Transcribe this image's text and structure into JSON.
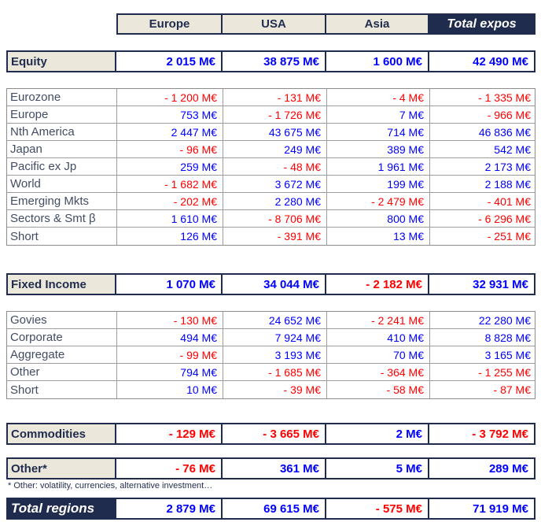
{
  "colors": {
    "navy": "#1f2c4d",
    "beige": "#ebe7db",
    "positive_value": "#0000ff",
    "negative_value": "#ff0000",
    "grid": "#9d9d9d",
    "detail_label": "#414d63"
  },
  "currency_unit": "M€",
  "header": {
    "columns": [
      {
        "label": "Europe",
        "emphasis": false
      },
      {
        "label": "USA",
        "emphasis": false
      },
      {
        "label": "Asia",
        "emphasis": false
      },
      {
        "label": "Total expos",
        "emphasis": true
      }
    ]
  },
  "sections": [
    {
      "kind": "section",
      "label": "Equity",
      "values": [
        "2 015 M€",
        "38 875 M€",
        "1 600 M€",
        "42 490 M€"
      ]
    },
    {
      "kind": "detail",
      "rows": [
        {
          "label": "Eurozone",
          "values": [
            "- 1 200 M€",
            "- 131 M€",
            "- 4 M€",
            "- 1 335 M€"
          ]
        },
        {
          "label": "Europe",
          "values": [
            "753 M€",
            "- 1 726 M€",
            "7 M€",
            "- 966 M€"
          ]
        },
        {
          "label": "Nth America",
          "values": [
            "2 447 M€",
            "43 675 M€",
            "714 M€",
            "46 836 M€"
          ]
        },
        {
          "label": "Japan",
          "values": [
            "- 96 M€",
            "249 M€",
            "389 M€",
            "542 M€"
          ]
        },
        {
          "label": "Pacific ex Jp",
          "values": [
            "259 M€",
            "- 48 M€",
            "1 961 M€",
            "2 173 M€"
          ]
        },
        {
          "label": "World",
          "values": [
            "- 1 682 M€",
            "3 672 M€",
            "199 M€",
            "2 188 M€"
          ]
        },
        {
          "label": "Emerging Mkts",
          "values": [
            "- 202 M€",
            "2 280 M€",
            "- 2 479 M€",
            "- 401 M€"
          ]
        },
        {
          "label": "Sectors & Smt β",
          "values": [
            "1 610 M€",
            "- 8 706 M€",
            "800 M€",
            "- 6 296 M€"
          ]
        },
        {
          "label": "Short",
          "values": [
            "126 M€",
            "- 391 M€",
            "13 M€",
            "- 251 M€"
          ]
        }
      ]
    },
    {
      "kind": "section",
      "label": "Fixed Income",
      "values": [
        "1 070 M€",
        "34 044 M€",
        "- 2 182 M€",
        "32 931 M€"
      ]
    },
    {
      "kind": "detail",
      "rows": [
        {
          "label": "Govies",
          "values": [
            "- 130 M€",
            "24 652 M€",
            "- 2 241 M€",
            "22 280 M€"
          ]
        },
        {
          "label": "Corporate",
          "values": [
            "494 M€",
            "7 924 M€",
            "410 M€",
            "8 828 M€"
          ]
        },
        {
          "label": "Aggregate",
          "values": [
            "- 99 M€",
            "3 193 M€",
            "70 M€",
            "3 165 M€"
          ]
        },
        {
          "label": "Other",
          "values": [
            "794 M€",
            "- 1 685 M€",
            "- 364 M€",
            "- 1 255 M€"
          ]
        },
        {
          "label": "Short",
          "values": [
            "10 M€",
            "- 39 M€",
            "- 58 M€",
            "- 87 M€"
          ]
        }
      ]
    },
    {
      "kind": "section",
      "label": "Commodities",
      "values": [
        "- 129 M€",
        "- 3 665 M€",
        "2 M€",
        "- 3 792 M€"
      ]
    },
    {
      "kind": "section",
      "label": "Other*",
      "values": [
        "- 76 M€",
        "361 M€",
        "5 M€",
        "289 M€"
      ],
      "footnote": "* Other: volatility, currencies, alternative investment…"
    },
    {
      "kind": "total",
      "label": "Total regions",
      "values": [
        "2 879 M€",
        "69 615 M€",
        "- 575 M€",
        "71 919 M€"
      ]
    }
  ]
}
